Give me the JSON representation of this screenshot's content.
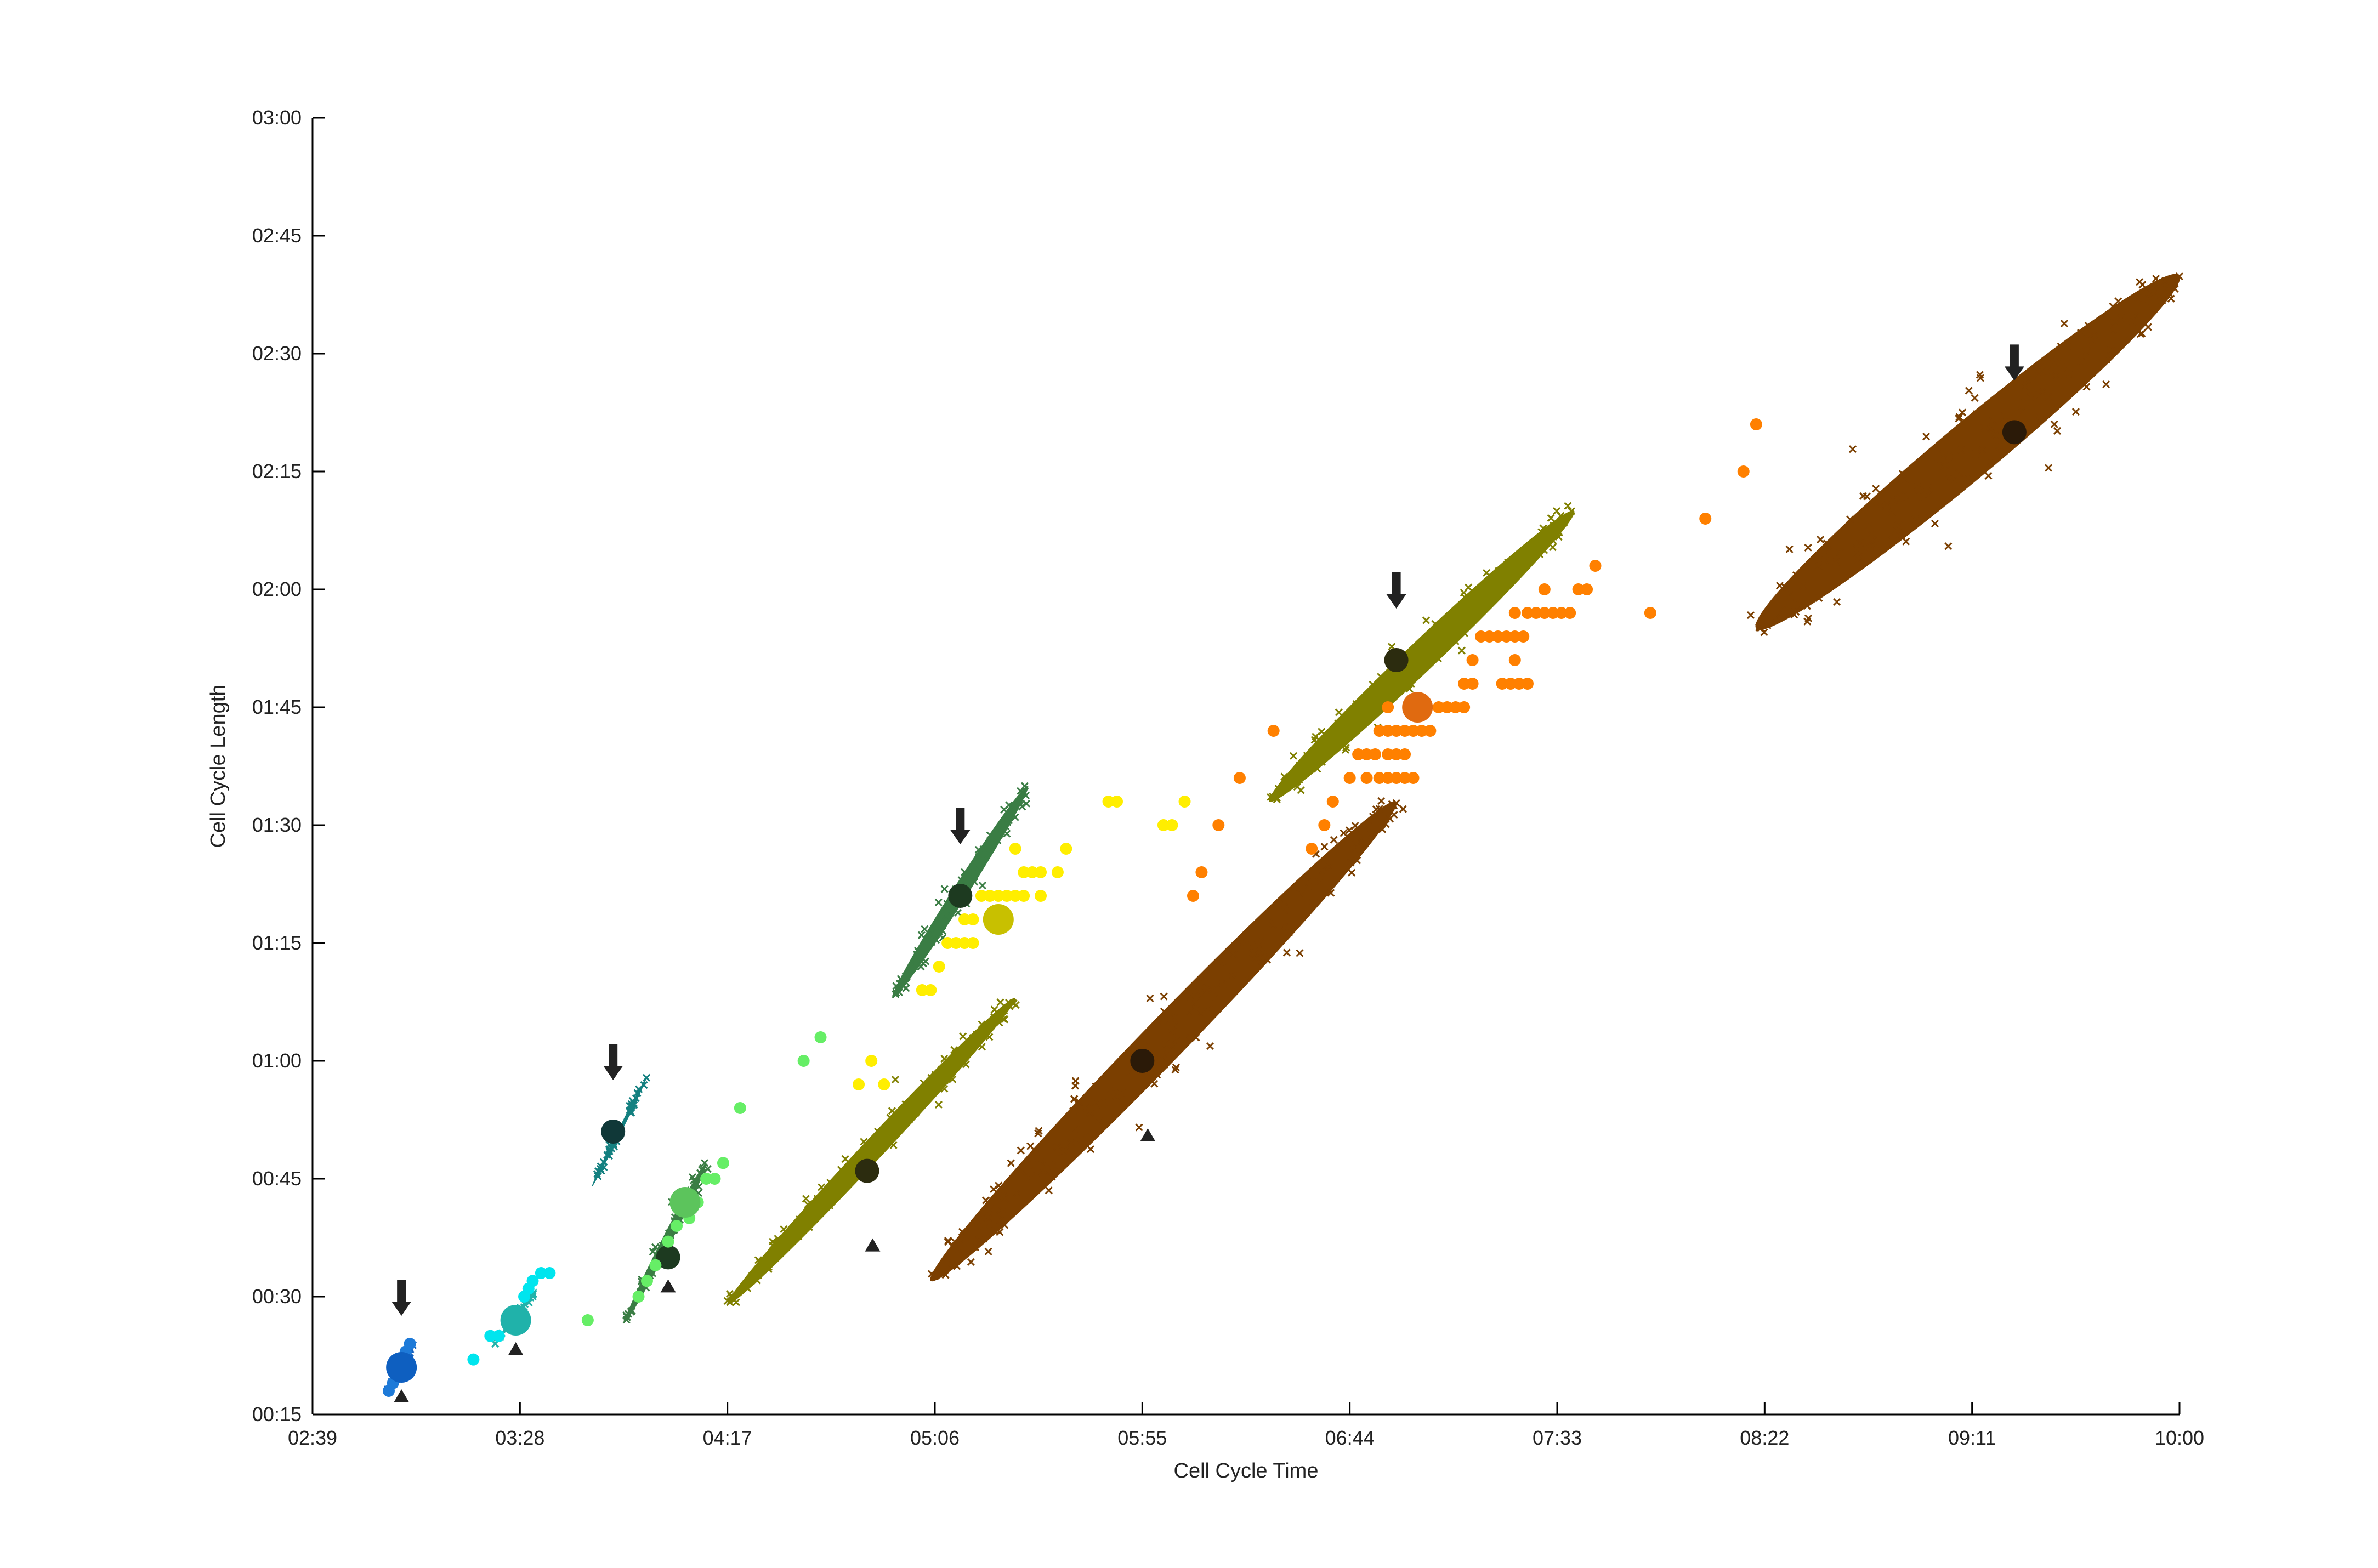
{
  "chart_data": {
    "type": "scatter",
    "title": "",
    "xlabel": "Cell Cycle Time",
    "ylabel": "Cell Cycle Length",
    "x_unit": "hh:mm",
    "y_unit": "hh:mm",
    "xlim": [
      "02:39",
      "10:00"
    ],
    "ylim": [
      "00:15",
      "03:00"
    ],
    "x_ticks": [
      "02:39",
      "03:28",
      "04:17",
      "05:06",
      "05:55",
      "06:44",
      "07:33",
      "08:22",
      "09:11",
      "10:00"
    ],
    "y_ticks": [
      "00:15",
      "00:30",
      "00:45",
      "01:00",
      "01:15",
      "01:30",
      "01:45",
      "02:00",
      "02:15",
      "02:30",
      "02:45",
      "03:00"
    ],
    "grid": false,
    "legend": "none",
    "clusters": [
      {
        "center": [
          "03:00",
          "00:21"
        ],
        "x_range": [
          "02:57",
          "03:03"
        ],
        "y_range": [
          "00:18",
          "00:24"
        ],
        "angle_deg": 62,
        "width_min": 0.8,
        "color": "#1560bd",
        "point_style": "x",
        "marker": "#0f4f9e",
        "arrow": true,
        "triangle": true
      },
      {
        "center": [
          "03:27",
          "00:27"
        ],
        "x_range": [
          "03:22",
          "03:32"
        ],
        "y_range": [
          "00:24",
          "00:31"
        ],
        "angle_deg": 62,
        "width_min": 0.9,
        "color": "#20b2aa",
        "point_style": "x",
        "marker": "#1aa5a0",
        "arrow": false,
        "triangle": true
      },
      {
        "center": [
          "03:50",
          "00:51"
        ],
        "x_range": [
          "03:45",
          "03:58"
        ],
        "y_range": [
          "00:44",
          "00:58"
        ],
        "angle_deg": 63,
        "width_min": 0.9,
        "color": "#138080",
        "point_style": "x",
        "marker": "#103838",
        "arrow": true,
        "triangle": false
      },
      {
        "center": [
          "04:03",
          "00:35"
        ],
        "x_range": [
          "03:53",
          "04:12"
        ],
        "y_range": [
          "00:27",
          "00:47"
        ],
        "angle_deg": 60,
        "width_min": 2.2,
        "color": "#3a7d44",
        "point_style": "fill",
        "marker": "#1d3a20",
        "arrow": false,
        "triangle": true
      },
      {
        "center": [
          "04:50",
          "00:46"
        ],
        "x_range": [
          "04:17",
          "05:25"
        ],
        "y_range": [
          "00:29",
          "01:08"
        ],
        "angle_deg": 52,
        "width_min": 5.0,
        "color": "#808000",
        "point_style": "fill",
        "marker": "#2c2c0f",
        "arrow": false,
        "triangle": true
      },
      {
        "center": [
          "05:12",
          "01:21"
        ],
        "x_range": [
          "04:56",
          "05:28"
        ],
        "y_range": [
          "01:08",
          "01:35"
        ],
        "angle_deg": 58,
        "width_min": 3.5,
        "color": "#3a7d44",
        "point_style": "fill",
        "marker": "#1d3a20",
        "arrow": true,
        "triangle": false
      },
      {
        "center": [
          "05:55",
          "01:00"
        ],
        "x_range": [
          "05:05",
          "06:55"
        ],
        "y_range": [
          "00:32",
          "01:33"
        ],
        "angle_deg": 45,
        "width_min": 10.0,
        "color": "#7b3f00",
        "point_style": "fill",
        "marker": "#2b1a08",
        "arrow": false,
        "triangle": true
      },
      {
        "center": [
          "06:55",
          "01:51"
        ],
        "x_range": [
          "06:25",
          "07:37"
        ],
        "y_range": [
          "01:33",
          "02:10"
        ],
        "angle_deg": 40,
        "width_min": 7.0,
        "color": "#808000",
        "point_style": "fill",
        "marker": "#2c2c0f",
        "arrow": true,
        "triangle": false
      },
      {
        "center": [
          "09:21",
          "02:20"
        ],
        "x_range": [
          "08:20",
          "10:00"
        ],
        "y_range": [
          "01:55",
          "02:40"
        ],
        "angle_deg": 33,
        "width_min": 13.0,
        "color": "#7b3f00",
        "point_style": "fill",
        "marker": "#2b1a08",
        "arrow": true,
        "triangle": false
      }
    ],
    "scatter_series": [
      {
        "color": "#1e7ad8",
        "marker": "#0e5fc0",
        "marker_center": [
          "03:00",
          "00:21"
        ],
        "points": [
          [
            "02:57",
            "00:18"
          ],
          [
            "02:58",
            "00:19"
          ],
          [
            "03:02",
            "00:24"
          ],
          [
            "03:01",
            "00:23"
          ]
        ]
      },
      {
        "color": "#00e5ee",
        "marker": "#20b2aa",
        "marker_center": [
          "03:27",
          "00:27"
        ],
        "points": [
          [
            "03:17",
            "00:22"
          ],
          [
            "03:21",
            "00:25"
          ],
          [
            "03:23",
            "00:25"
          ],
          [
            "03:29",
            "00:30"
          ],
          [
            "03:31",
            "00:32"
          ],
          [
            "03:33",
            "00:33"
          ],
          [
            "03:35",
            "00:33"
          ],
          [
            "03:30",
            "00:31"
          ]
        ]
      },
      {
        "color": "#66ee66",
        "marker": "#5cc45c",
        "marker_center": [
          "04:07",
          "00:42"
        ],
        "points": [
          [
            "03:44",
            "00:27"
          ],
          [
            "03:56",
            "00:30"
          ],
          [
            "03:58",
            "00:32"
          ],
          [
            "04:00",
            "00:34"
          ],
          [
            "04:03",
            "00:37"
          ],
          [
            "04:05",
            "00:39"
          ],
          [
            "04:08",
            "00:40"
          ],
          [
            "04:10",
            "00:42"
          ],
          [
            "04:12",
            "00:45"
          ],
          [
            "04:14",
            "00:45"
          ],
          [
            "04:16",
            "00:47"
          ],
          [
            "04:20",
            "00:54"
          ],
          [
            "04:35",
            "01:00"
          ],
          [
            "04:39",
            "01:03"
          ]
        ]
      },
      {
        "color": "#ffee00",
        "marker": "#c8c000",
        "marker_center": [
          "05:21",
          "01:18"
        ],
        "points": [
          [
            "04:48",
            "00:57"
          ],
          [
            "04:51",
            "01:00"
          ],
          [
            "04:54",
            "00:57"
          ],
          [
            "05:03",
            "01:09"
          ],
          [
            "05:05",
            "01:09"
          ],
          [
            "05:07",
            "01:12"
          ],
          [
            "05:09",
            "01:15"
          ],
          [
            "05:11",
            "01:15"
          ],
          [
            "05:13",
            "01:15"
          ],
          [
            "05:15",
            "01:15"
          ],
          [
            "05:13",
            "01:18"
          ],
          [
            "05:15",
            "01:18"
          ],
          [
            "05:17",
            "01:21"
          ],
          [
            "05:19",
            "01:21"
          ],
          [
            "05:21",
            "01:21"
          ],
          [
            "05:23",
            "01:21"
          ],
          [
            "05:25",
            "01:21"
          ],
          [
            "05:27",
            "01:21"
          ],
          [
            "05:27",
            "01:24"
          ],
          [
            "05:29",
            "01:24"
          ],
          [
            "05:31",
            "01:24"
          ],
          [
            "05:31",
            "01:21"
          ],
          [
            "05:35",
            "01:24"
          ],
          [
            "05:25",
            "01:27"
          ],
          [
            "05:37",
            "01:27"
          ],
          [
            "05:47",
            "01:33"
          ],
          [
            "05:49",
            "01:33"
          ],
          [
            "06:00",
            "01:30"
          ],
          [
            "06:02",
            "01:30"
          ],
          [
            "06:05",
            "01:33"
          ]
        ]
      },
      {
        "color": "#ff8000",
        "marker": "#e06a10",
        "marker_center": [
          "07:00",
          "01:45"
        ],
        "points": [
          [
            "06:07",
            "01:21"
          ],
          [
            "06:09",
            "01:24"
          ],
          [
            "06:13",
            "01:30"
          ],
          [
            "06:18",
            "01:36"
          ],
          [
            "06:26",
            "01:42"
          ],
          [
            "06:35",
            "01:27"
          ],
          [
            "06:38",
            "01:30"
          ],
          [
            "06:40",
            "01:33"
          ],
          [
            "06:44",
            "01:36"
          ],
          [
            "06:46",
            "01:39"
          ],
          [
            "06:48",
            "01:39"
          ],
          [
            "06:50",
            "01:39"
          ],
          [
            "06:53",
            "01:39"
          ],
          [
            "06:55",
            "01:39"
          ],
          [
            "06:57",
            "01:39"
          ],
          [
            "06:48",
            "01:36"
          ],
          [
            "06:51",
            "01:36"
          ],
          [
            "06:53",
            "01:36"
          ],
          [
            "06:55",
            "01:36"
          ],
          [
            "06:57",
            "01:36"
          ],
          [
            "06:59",
            "01:36"
          ],
          [
            "06:51",
            "01:42"
          ],
          [
            "06:53",
            "01:42"
          ],
          [
            "06:55",
            "01:42"
          ],
          [
            "06:57",
            "01:42"
          ],
          [
            "06:59",
            "01:42"
          ],
          [
            "07:01",
            "01:42"
          ],
          [
            "07:03",
            "01:42"
          ],
          [
            "06:53",
            "01:45"
          ],
          [
            "07:05",
            "01:45"
          ],
          [
            "07:07",
            "01:45"
          ],
          [
            "07:09",
            "01:45"
          ],
          [
            "07:11",
            "01:45"
          ],
          [
            "07:11",
            "01:48"
          ],
          [
            "07:13",
            "01:48"
          ],
          [
            "07:20",
            "01:48"
          ],
          [
            "07:22",
            "01:48"
          ],
          [
            "07:24",
            "01:48"
          ],
          [
            "07:26",
            "01:48"
          ],
          [
            "07:13",
            "01:51"
          ],
          [
            "07:23",
            "01:51"
          ],
          [
            "07:15",
            "01:54"
          ],
          [
            "07:17",
            "01:54"
          ],
          [
            "07:19",
            "01:54"
          ],
          [
            "07:21",
            "01:54"
          ],
          [
            "07:23",
            "01:54"
          ],
          [
            "07:25",
            "01:54"
          ],
          [
            "07:23",
            "01:57"
          ],
          [
            "07:26",
            "01:57"
          ],
          [
            "07:28",
            "01:57"
          ],
          [
            "07:30",
            "01:57"
          ],
          [
            "07:32",
            "01:57"
          ],
          [
            "07:34",
            "01:57"
          ],
          [
            "07:36",
            "01:57"
          ],
          [
            "07:30",
            "02:00"
          ],
          [
            "07:38",
            "02:00"
          ],
          [
            "07:40",
            "02:00"
          ],
          [
            "07:42",
            "02:03"
          ],
          [
            "07:55",
            "01:57"
          ],
          [
            "08:08",
            "02:09"
          ],
          [
            "08:17",
            "02:15"
          ],
          [
            "08:20",
            "02:21"
          ]
        ]
      }
    ]
  }
}
